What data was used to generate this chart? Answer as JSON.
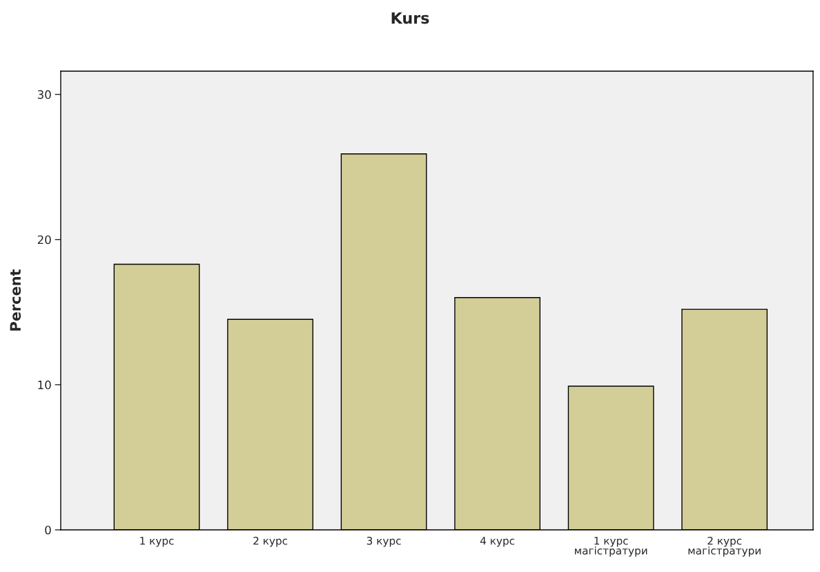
{
  "chart_data": {
    "type": "bar",
    "title": "Kurs",
    "ylabel": "Percent",
    "categories": [
      "1 курс",
      "2 курс",
      "3 курс",
      "4 курс",
      "1 курс\nмагістратури",
      "2 курс\nмагістратури"
    ],
    "values": [
      18.3,
      14.5,
      25.9,
      16.0,
      9.9,
      15.2
    ],
    "color": "#d3ce97",
    "ylim": [
      0,
      31.6
    ],
    "yticks": [
      0,
      10,
      20,
      30
    ],
    "grid": false
  }
}
